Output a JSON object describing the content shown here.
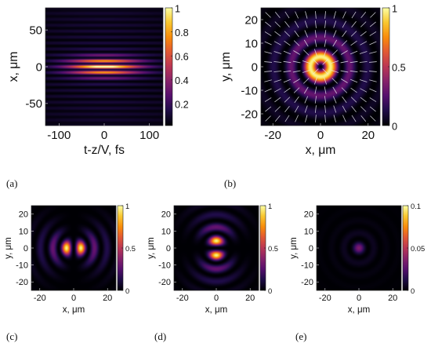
{
  "panels": [
    {
      "id": "a",
      "panel_label": "(a)",
      "kind": "pulse",
      "xlabel": "t-z/V, fs",
      "ylabel": "x, μm",
      "xlim": [
        -130,
        130
      ],
      "ylim": [
        -80,
        80
      ],
      "xticks": [
        -100,
        0,
        100
      ],
      "xtick_labels": [
        "-100",
        "0",
        "100"
      ],
      "yticks": [
        50,
        0,
        -50
      ],
      "ytick_labels": [
        "50",
        "0",
        "-50"
      ],
      "cbar_ticks": [
        1,
        0.8,
        0.6,
        0.4,
        0.2
      ],
      "cbar_labels": [
        "1",
        "0.8",
        "0.6",
        "0.4",
        "0.2"
      ],
      "clim": [
        0.02,
        1
      ],
      "vmax": 1
    },
    {
      "id": "b",
      "panel_label": "(b)",
      "kind": "radial",
      "xlabel": "x, μm",
      "ylabel": "y, μm",
      "xlim": [
        -25,
        25
      ],
      "ylim": [
        -25,
        25
      ],
      "xticks": [
        -20,
        0,
        20
      ],
      "xtick_labels": [
        "-20",
        "0",
        "20"
      ],
      "yticks": [
        20,
        10,
        0,
        -10,
        -20
      ],
      "ytick_labels": [
        "20",
        "10",
        "0",
        "-10",
        "-20"
      ],
      "cbar_ticks": [
        1,
        0.5,
        0
      ],
      "cbar_labels": [
        "1",
        "0.5",
        "0"
      ],
      "clim": [
        0,
        1
      ],
      "vmax": 1,
      "arrows": true
    },
    {
      "id": "c",
      "panel_label": "(c)",
      "kind": "mode_x",
      "xlabel": "x, μm",
      "ylabel": "y, μm",
      "xlim": [
        -25,
        25
      ],
      "ylim": [
        -25,
        25
      ],
      "xticks": [
        -20,
        0,
        20
      ],
      "xtick_labels": [
        "-20",
        "0",
        "20"
      ],
      "yticks": [
        20,
        10,
        0,
        -10,
        -20
      ],
      "ytick_labels": [
        "20",
        "10",
        "0",
        "-10",
        "-20"
      ],
      "cbar_ticks": [
        1,
        0.5,
        0
      ],
      "cbar_labels": [
        "1",
        "0.5",
        "0"
      ],
      "clim": [
        0,
        1
      ],
      "vmax": 1
    },
    {
      "id": "d",
      "panel_label": "(d)",
      "kind": "mode_y",
      "xlabel": "x, μm",
      "ylabel": "y, μm",
      "xlim": [
        -25,
        25
      ],
      "ylim": [
        -25,
        25
      ],
      "xticks": [
        -20,
        0,
        20
      ],
      "xtick_labels": [
        "-20",
        "0",
        "20"
      ],
      "yticks": [
        20,
        10,
        0,
        -10,
        -20
      ],
      "ytick_labels": [
        "20",
        "10",
        "0",
        "-10",
        "-20"
      ],
      "cbar_ticks": [
        1,
        0.5,
        0
      ],
      "cbar_labels": [
        "1",
        "0.5",
        "0"
      ],
      "clim": [
        0,
        1
      ],
      "vmax": 1
    },
    {
      "id": "e",
      "panel_label": "(e)",
      "kind": "longitudinal",
      "xlabel": "x, μm",
      "ylabel": "y, μm",
      "xlim": [
        -25,
        25
      ],
      "ylim": [
        -25,
        25
      ],
      "xticks": [
        -20,
        0,
        20
      ],
      "xtick_labels": [
        "-20",
        "0",
        "20"
      ],
      "yticks": [
        20,
        10,
        0,
        -10,
        -20
      ],
      "ytick_labels": [
        "20",
        "10",
        "0",
        "-10",
        "-20"
      ],
      "cbar_ticks": [
        0.1,
        0.05,
        0
      ],
      "cbar_labels": [
        "0.1",
        "0.05",
        "0"
      ],
      "clim": [
        0,
        0.1
      ],
      "vmax": 0.1
    }
  ],
  "chart_data": [
    {
      "type": "heatmap",
      "panel": "(a)",
      "xlabel": "t-z/V, fs",
      "ylabel": "x, μm",
      "xlim": [
        -130,
        130
      ],
      "ylim": [
        -80,
        80
      ],
      "colorbar_range": [
        0,
        1
      ],
      "description_values": {
        "peak": 1,
        "peak_at": [
          0,
          0
        ]
      }
    },
    {
      "type": "heatmap",
      "panel": "(b)",
      "xlabel": "x, μm",
      "ylabel": "y, μm",
      "xlim": [
        -25,
        25
      ],
      "ylim": [
        -25,
        25
      ],
      "colorbar_range": [
        0,
        1
      ]
    },
    {
      "type": "heatmap",
      "panel": "(c)",
      "xlabel": "x, μm",
      "ylabel": "y, μm",
      "xlim": [
        -25,
        25
      ],
      "ylim": [
        -25,
        25
      ],
      "colorbar_range": [
        0,
        1
      ]
    },
    {
      "type": "heatmap",
      "panel": "(d)",
      "xlabel": "x, μm",
      "ylabel": "y, μm",
      "xlim": [
        -25,
        25
      ],
      "ylim": [
        -25,
        25
      ],
      "colorbar_range": [
        0,
        1
      ]
    },
    {
      "type": "heatmap",
      "panel": "(e)",
      "xlabel": "x, μm",
      "ylabel": "y, μm",
      "xlim": [
        -25,
        25
      ],
      "ylim": [
        -25,
        25
      ],
      "colorbar_range": [
        0,
        0.1
      ]
    }
  ]
}
